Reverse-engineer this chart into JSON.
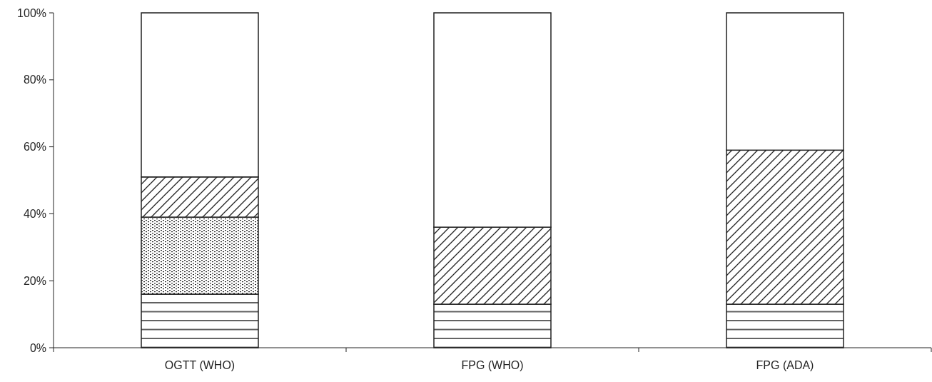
{
  "chart_data": {
    "type": "bar",
    "stacked": true,
    "categories": [
      "OGTT (WHO)",
      "FPG (WHO)",
      "FPG (ADA)"
    ],
    "series": [
      {
        "color": "#222222",
        "values": [
          16,
          13,
          13
        ]
      },
      {
        "color": "#222222",
        "values": [
          23,
          0,
          0
        ]
      },
      {
        "color": "#222222",
        "values": [
          12,
          23,
          46
        ]
      },
      {
        "color": "#ffffff",
        "values": [
          49,
          64,
          41
        ]
      }
    ],
    "ylim": [
      0,
      100
    ],
    "yticks": [
      {
        "value": 0,
        "label": "0%"
      },
      {
        "value": 20,
        "label": "20%"
      },
      {
        "value": 40,
        "label": "40%"
      },
      {
        "value": 60,
        "label": "60%"
      },
      {
        "value": 80,
        "label": "80%"
      },
      {
        "value": 100,
        "label": "100%"
      }
    ],
    "grid": false
  }
}
